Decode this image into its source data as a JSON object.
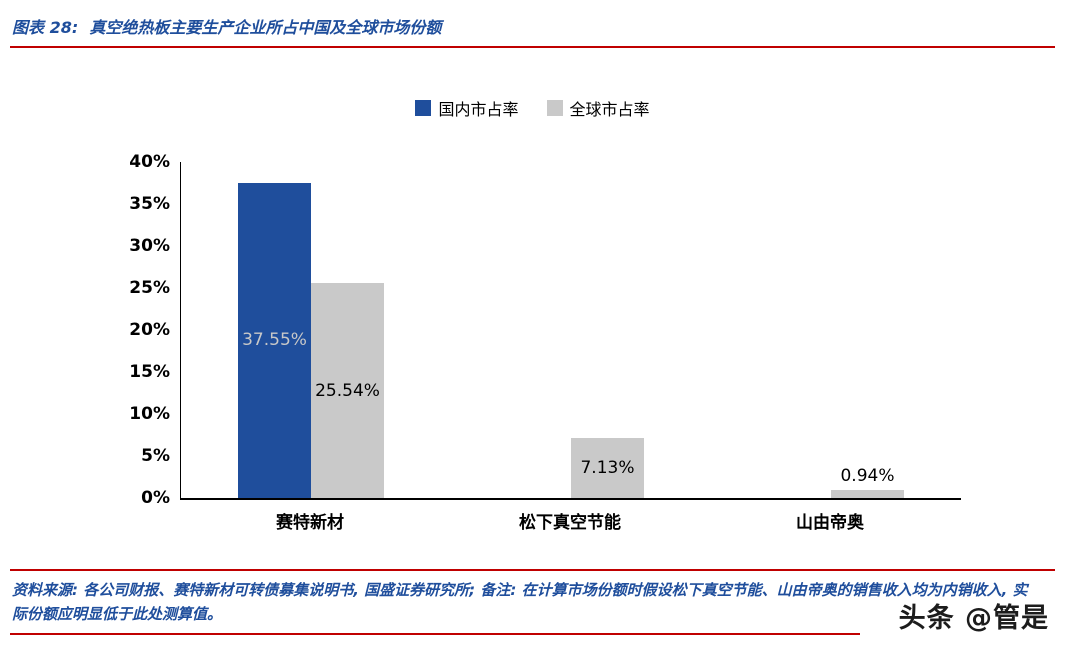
{
  "header": {
    "title": "图表 28:  真空绝热板主要生产企业所占中国及全球市场份额"
  },
  "chart_data": {
    "type": "bar",
    "title": "",
    "categories": [
      "赛特新材",
      "松下真空节能",
      "山由帝奥"
    ],
    "series": [
      {
        "name": "国内市占率",
        "color": "#1F4E9C",
        "values": [
          37.55,
          null,
          null
        ],
        "labels": [
          "37.55%",
          "",
          ""
        ]
      },
      {
        "name": "全球市占率",
        "color": "#C9C9C9",
        "values": [
          25.54,
          7.13,
          0.94
        ],
        "labels": [
          "25.54%",
          "7.13%",
          "0.94%"
        ]
      }
    ],
    "ylim": [
      0,
      40
    ],
    "yticks": [
      "40%",
      "35%",
      "30%",
      "25%",
      "20%",
      "15%",
      "10%",
      "5%",
      "0%"
    ],
    "grid": false,
    "legend_position": "top"
  },
  "footer": {
    "source": "资料来源: 各公司财报、赛特新材可转债募集说明书, 国盛证券研究所; 备注: 在计算市场份额时假设松下真空节能、山由帝奥的销售收入均为内销收入, 实际份额应明显低于此处测算值。"
  },
  "watermark": "头条 @管是",
  "colors": {
    "accent_blue": "#1F4E9C",
    "rule_red": "#C00000",
    "bar_gray": "#C9C9C9",
    "inside_label_gray": "#C8C8C8"
  }
}
